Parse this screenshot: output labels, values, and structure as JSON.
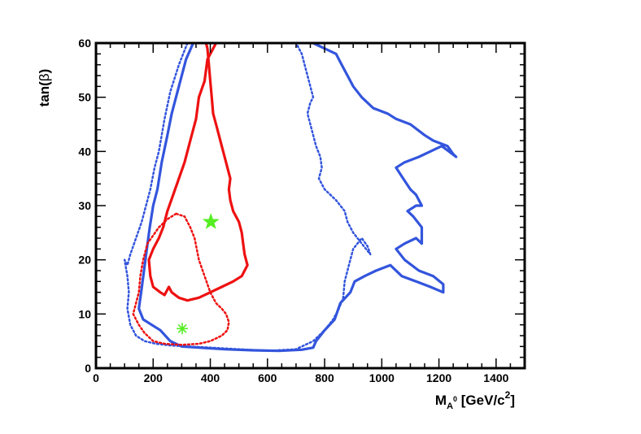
{
  "chart_data": {
    "type": "line",
    "xlabel": {
      "main": "M",
      "sub": "A",
      "sup_on_sub": "0",
      "units": " [GeV/c",
      "units_sup": "2",
      "close": "]"
    },
    "ylabel": {
      "main": "tan(",
      "greek": "β",
      "close": ")"
    },
    "xlim": [
      0,
      1500
    ],
    "ylim": [
      0,
      60
    ],
    "xticks": [
      0,
      200,
      400,
      600,
      800,
      1000,
      1200,
      1400
    ],
    "yticks": [
      0,
      10,
      20,
      30,
      40,
      50,
      60
    ],
    "grid": false,
    "colors": {
      "blue": "#3355dd",
      "red": "#ee1111",
      "star": "#55ee22"
    },
    "series": [
      {
        "style": "solid",
        "color": "#3355dd",
        "points": [
          [
            340,
            60
          ],
          [
            315,
            57
          ],
          [
            290,
            52
          ],
          [
            265,
            47
          ],
          [
            250,
            43
          ],
          [
            230,
            38
          ],
          [
            215,
            33
          ],
          [
            200,
            30
          ],
          [
            188,
            26
          ],
          [
            178,
            22
          ],
          [
            168,
            18
          ],
          [
            158,
            14
          ],
          [
            150,
            11
          ],
          [
            165,
            9
          ],
          [
            195,
            8
          ],
          [
            225,
            7
          ],
          [
            260,
            5
          ],
          [
            300,
            4
          ],
          [
            360,
            3.8
          ],
          [
            450,
            3.5
          ],
          [
            550,
            3.3
          ],
          [
            640,
            3.2
          ],
          [
            720,
            3.4
          ],
          [
            760,
            3.8
          ],
          [
            770,
            5
          ],
          [
            800,
            7
          ],
          [
            835,
            9
          ],
          [
            855,
            12
          ],
          [
            890,
            14
          ],
          [
            905,
            16
          ],
          [
            940,
            17
          ],
          [
            980,
            18
          ],
          [
            1030,
            19
          ],
          [
            1070,
            17
          ],
          [
            1120,
            16
          ],
          [
            1170,
            15
          ],
          [
            1215,
            14
          ],
          [
            1215,
            15.5
          ],
          [
            1180,
            17
          ],
          [
            1130,
            18
          ],
          [
            1080,
            20
          ],
          [
            1050,
            22
          ],
          [
            1080,
            23
          ],
          [
            1120,
            24
          ],
          [
            1140,
            23
          ],
          [
            1140,
            26
          ],
          [
            1110,
            28
          ],
          [
            1090,
            29
          ],
          [
            1120,
            30
          ],
          [
            1140,
            30
          ],
          [
            1120,
            32
          ],
          [
            1100,
            33
          ],
          [
            1075,
            35
          ],
          [
            1050,
            37
          ],
          [
            1080,
            38
          ],
          [
            1130,
            39
          ],
          [
            1170,
            40
          ],
          [
            1210,
            41
          ],
          [
            1260,
            39
          ],
          [
            1250,
            39.5
          ],
          [
            1230,
            41
          ],
          [
            1180,
            42
          ],
          [
            1150,
            43
          ],
          [
            1100,
            45
          ],
          [
            1050,
            46
          ],
          [
            1020,
            47
          ],
          [
            970,
            48
          ],
          [
            930,
            50
          ],
          [
            900,
            52
          ],
          [
            880,
            54
          ],
          [
            860,
            56
          ],
          [
            840,
            58
          ],
          [
            800,
            59
          ],
          [
            760,
            60
          ]
        ]
      },
      {
        "style": "dotted",
        "color": "#3355dd",
        "points": [
          [
            320,
            60
          ],
          [
            290,
            56
          ],
          [
            260,
            51
          ],
          [
            240,
            46
          ],
          [
            230,
            43
          ],
          [
            220,
            40
          ],
          [
            205,
            37
          ],
          [
            190,
            33
          ],
          [
            175,
            30
          ],
          [
            160,
            27
          ],
          [
            140,
            24
          ],
          [
            120,
            21
          ],
          [
            110,
            19
          ],
          [
            100,
            20
          ],
          [
            110,
            17
          ],
          [
            115,
            14
          ],
          [
            110,
            11
          ],
          [
            120,
            8
          ],
          [
            140,
            6
          ],
          [
            170,
            5
          ],
          [
            210,
            4.5
          ],
          [
            260,
            4.2
          ],
          [
            320,
            4
          ],
          [
            400,
            3.8
          ],
          [
            500,
            3.5
          ],
          [
            600,
            3.2
          ],
          [
            700,
            3.5
          ],
          [
            760,
            5
          ],
          [
            800,
            7
          ],
          [
            830,
            9
          ],
          [
            850,
            11
          ],
          [
            865,
            13
          ],
          [
            870,
            16
          ],
          [
            885,
            19
          ],
          [
            900,
            22
          ],
          [
            930,
            24
          ],
          [
            950,
            22.5
          ],
          [
            960,
            21
          ],
          [
            930,
            23
          ],
          [
            900,
            25
          ],
          [
            880,
            27
          ],
          [
            870,
            29
          ],
          [
            840,
            31
          ],
          [
            800,
            33
          ],
          [
            780,
            35
          ],
          [
            790,
            37
          ],
          [
            785,
            39
          ],
          [
            770,
            41
          ],
          [
            760,
            43
          ],
          [
            750,
            45
          ],
          [
            740,
            47
          ],
          [
            750,
            49
          ],
          [
            760,
            50
          ],
          [
            750,
            52
          ],
          [
            740,
            54
          ],
          [
            730,
            56
          ],
          [
            720,
            58
          ],
          [
            700,
            60
          ]
        ]
      },
      {
        "style": "solid",
        "color": "#ee1111",
        "points": [
          [
            420,
            60
          ],
          [
            390,
            57
          ],
          [
            380,
            53
          ],
          [
            360,
            50
          ],
          [
            350,
            46
          ],
          [
            330,
            42
          ],
          [
            310,
            38
          ],
          [
            290,
            35
          ],
          [
            270,
            32
          ],
          [
            250,
            29
          ],
          [
            235,
            26
          ],
          [
            220,
            24
          ],
          [
            200,
            22
          ],
          [
            185,
            20
          ],
          [
            190,
            17
          ],
          [
            200,
            15
          ],
          [
            225,
            14
          ],
          [
            240,
            13.5
          ],
          [
            255,
            15
          ],
          [
            265,
            14
          ],
          [
            290,
            13
          ],
          [
            320,
            12.5
          ],
          [
            360,
            13
          ],
          [
            400,
            14
          ],
          [
            440,
            15
          ],
          [
            480,
            16
          ],
          [
            510,
            17
          ],
          [
            530,
            19
          ],
          [
            520,
            21
          ],
          [
            515,
            23
          ],
          [
            510,
            25
          ],
          [
            500,
            27
          ],
          [
            480,
            29
          ],
          [
            470,
            31
          ],
          [
            465,
            33
          ],
          [
            470,
            35
          ],
          [
            460,
            37
          ],
          [
            450,
            39
          ],
          [
            440,
            41
          ],
          [
            430,
            43
          ],
          [
            420,
            45
          ],
          [
            410,
            47
          ],
          [
            405,
            50
          ],
          [
            400,
            53
          ],
          [
            395,
            56
          ],
          [
            390,
            59
          ],
          [
            385,
            60
          ]
        ]
      },
      {
        "style": "dotted",
        "color": "#ee1111",
        "points": [
          [
            280,
            28.5
          ],
          [
            250,
            27.5
          ],
          [
            220,
            26
          ],
          [
            200,
            24.5
          ],
          [
            180,
            23
          ],
          [
            165,
            20
          ],
          [
            155,
            17
          ],
          [
            150,
            14
          ],
          [
            140,
            12
          ],
          [
            130,
            10
          ],
          [
            150,
            8
          ],
          [
            170,
            6.5
          ],
          [
            200,
            5
          ],
          [
            240,
            4.5
          ],
          [
            300,
            4.3
          ],
          [
            360,
            4.5
          ],
          [
            400,
            5
          ],
          [
            440,
            6
          ],
          [
            460,
            7
          ],
          [
            465,
            8.5
          ],
          [
            455,
            10
          ],
          [
            440,
            11
          ],
          [
            420,
            12
          ],
          [
            400,
            14
          ],
          [
            380,
            17
          ],
          [
            360,
            20
          ],
          [
            345,
            24
          ],
          [
            330,
            26
          ],
          [
            310,
            28
          ],
          [
            280,
            28.5
          ]
        ]
      }
    ],
    "markers": [
      {
        "x": 402,
        "y": 27,
        "shape": "star",
        "color": "#55ee22"
      },
      {
        "x": 302,
        "y": 7.3,
        "shape": "asterisk",
        "color": "#55ee22"
      }
    ]
  }
}
